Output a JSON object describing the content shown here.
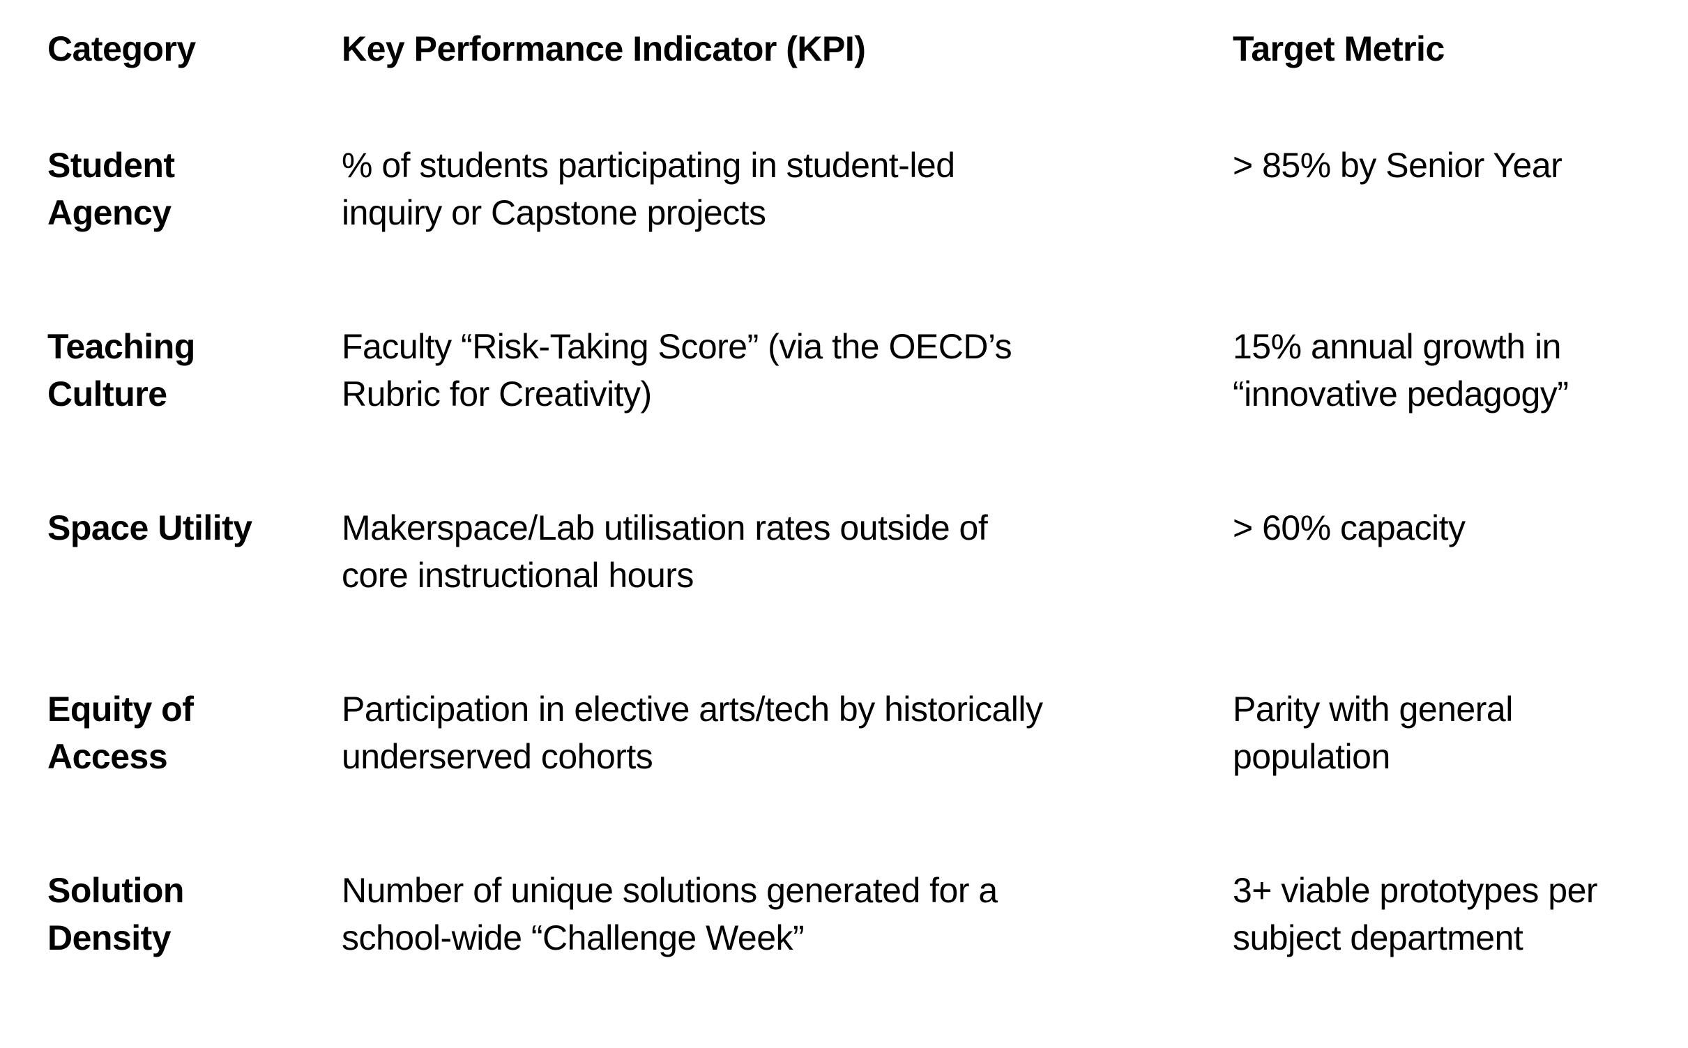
{
  "document": {
    "background_color": "#ffffff",
    "text_color": "#000000"
  },
  "table": {
    "headers": {
      "category": "Category",
      "kpi": "Key Performance Indicator (KPI)",
      "target": "Target Metric"
    },
    "rows": [
      {
        "category": "Student\nAgency",
        "kpi": "% of students participating in student-led\ninquiry or Capstone projects",
        "target": "> 85% by Senior Year"
      },
      {
        "category": "Teaching\nCulture",
        "kpi": "Faculty “Risk-Taking Score” (via the OECD’s\nRubric for Creativity)",
        "target": "15% annual growth in\n“innovative pedagogy”"
      },
      {
        "category": "Space Utility",
        "kpi": "Makerspace/Lab utilisation rates outside of\ncore instructional hours",
        "target": "> 60% capacity"
      },
      {
        "category": "Equity of\nAccess",
        "kpi": "Participation in elective arts/tech by historically\nunderserved cohorts",
        "target": "Parity with general\npopulation"
      },
      {
        "category": "Solution\nDensity",
        "kpi": "Number of unique solutions generated for a\nschool-wide “Challenge Week”",
        "target": "3+ viable prototypes per\nsubject department"
      }
    ]
  }
}
